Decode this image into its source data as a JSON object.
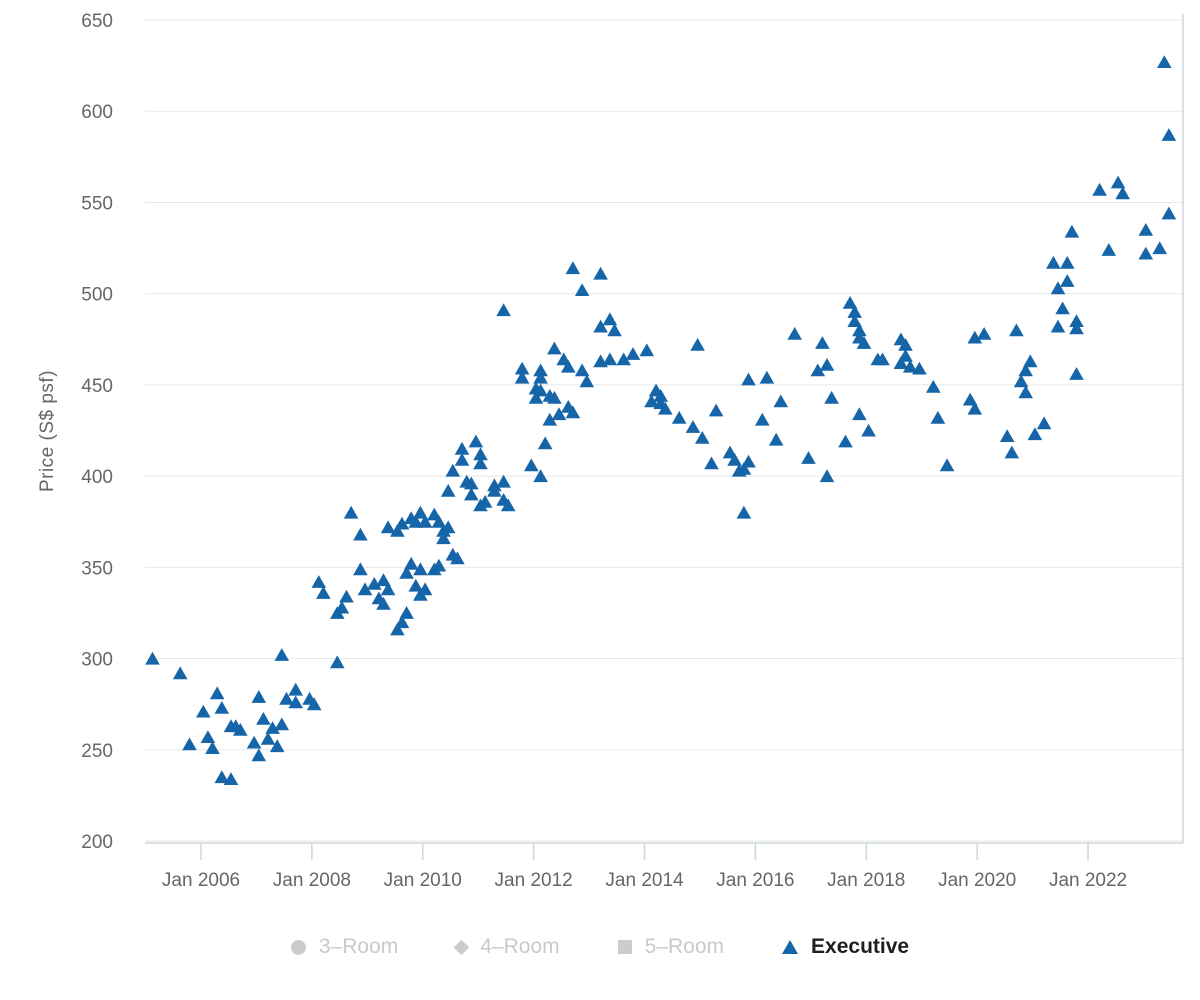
{
  "chart_data": {
    "type": "scatter",
    "title": "",
    "xlabel": "",
    "ylabel": "Price (S$ psf)",
    "ylim": [
      200,
      650
    ],
    "grid": true,
    "legend_position": "bottom",
    "colors": {
      "executive_marker": "#1565a8",
      "disabled_marker": "#cccccc",
      "grid_line": "#e7e7e7",
      "axis_line": "#ccd6dd",
      "tick_text": "#666666",
      "legend_disabled_text": "#c9c9c9",
      "legend_active_text": "#1f1f1f"
    },
    "y_axis": {
      "ticks": [
        200,
        250,
        300,
        350,
        400,
        450,
        500,
        550,
        600,
        650
      ]
    },
    "x_axis": {
      "ticks": [
        {
          "label": "Jan 2006",
          "year": 2006
        },
        {
          "label": "Jan 2008",
          "year": 2008
        },
        {
          "label": "Jan 2010",
          "year": 2010
        },
        {
          "label": "Jan 2012",
          "year": 2012
        },
        {
          "label": "Jan 2014",
          "year": 2014
        },
        {
          "label": "Jan 2016",
          "year": 2016
        },
        {
          "label": "Jan 2018",
          "year": 2018
        },
        {
          "label": "Jan 2020",
          "year": 2020
        },
        {
          "label": "Jan 2022",
          "year": 2022
        }
      ]
    },
    "legend": [
      {
        "label": "3–Room",
        "marker": "circle",
        "active": false
      },
      {
        "label": "4–Room",
        "marker": "diamond",
        "active": false
      },
      {
        "label": "5–Room",
        "marker": "square",
        "active": false
      },
      {
        "label": "Executive",
        "marker": "triangle",
        "active": true
      }
    ],
    "series": [
      {
        "name": "Executive",
        "marker": "triangle",
        "color": "#1565a8",
        "points": [
          [
            "2005-02",
            300
          ],
          [
            "2005-08",
            292
          ],
          [
            "2005-10",
            253
          ],
          [
            "2006-01",
            271
          ],
          [
            "2006-02",
            257
          ],
          [
            "2006-03",
            251
          ],
          [
            "2006-04",
            281
          ],
          [
            "2006-05",
            273
          ],
          [
            "2006-05",
            235
          ],
          [
            "2006-07",
            263
          ],
          [
            "2006-07",
            234
          ],
          [
            "2006-08",
            263
          ],
          [
            "2006-09",
            261
          ],
          [
            "2006-12",
            254
          ],
          [
            "2007-01",
            279
          ],
          [
            "2007-01",
            247
          ],
          [
            "2007-02",
            267
          ],
          [
            "2007-03",
            256
          ],
          [
            "2007-04",
            262
          ],
          [
            "2007-05",
            252
          ],
          [
            "2007-06",
            302
          ],
          [
            "2007-06",
            264
          ],
          [
            "2007-07",
            278
          ],
          [
            "2007-09",
            283
          ],
          [
            "2007-09",
            276
          ],
          [
            "2007-12",
            278
          ],
          [
            "2008-01",
            275
          ],
          [
            "2008-02",
            342
          ],
          [
            "2008-03",
            336
          ],
          [
            "2008-06",
            298
          ],
          [
            "2008-06",
            325
          ],
          [
            "2008-07",
            328
          ],
          [
            "2008-08",
            334
          ],
          [
            "2008-09",
            380
          ],
          [
            "2008-11",
            368
          ],
          [
            "2008-11",
            349
          ],
          [
            "2008-12",
            338
          ],
          [
            "2009-02",
            341
          ],
          [
            "2009-03",
            333
          ],
          [
            "2009-04",
            343
          ],
          [
            "2009-04",
            330
          ],
          [
            "2009-05",
            338
          ],
          [
            "2009-05",
            372
          ],
          [
            "2009-07",
            370
          ],
          [
            "2009-07",
            316
          ],
          [
            "2009-08",
            374
          ],
          [
            "2009-08",
            320
          ],
          [
            "2009-09",
            347
          ],
          [
            "2009-09",
            325
          ],
          [
            "2009-10",
            377
          ],
          [
            "2009-10",
            352
          ],
          [
            "2009-11",
            375
          ],
          [
            "2009-11",
            340
          ],
          [
            "2009-12",
            380
          ],
          [
            "2009-12",
            349
          ],
          [
            "2009-12",
            335
          ],
          [
            "2010-01",
            375
          ],
          [
            "2010-01",
            338
          ],
          [
            "2010-03",
            349
          ],
          [
            "2010-03",
            379
          ],
          [
            "2010-04",
            375
          ],
          [
            "2010-04",
            351
          ],
          [
            "2010-05",
            370
          ],
          [
            "2010-05",
            366
          ],
          [
            "2010-06",
            372
          ],
          [
            "2010-06",
            392
          ],
          [
            "2010-07",
            403
          ],
          [
            "2010-07",
            357
          ],
          [
            "2010-08",
            355
          ],
          [
            "2010-09",
            415
          ],
          [
            "2010-09",
            409
          ],
          [
            "2010-10",
            397
          ],
          [
            "2010-11",
            396
          ],
          [
            "2010-11",
            390
          ],
          [
            "2010-12",
            419
          ],
          [
            "2011-01",
            412
          ],
          [
            "2011-01",
            407
          ],
          [
            "2011-01",
            384
          ],
          [
            "2011-02",
            386
          ],
          [
            "2011-04",
            395
          ],
          [
            "2011-04",
            392
          ],
          [
            "2011-06",
            397
          ],
          [
            "2011-06",
            491
          ],
          [
            "2011-06",
            387
          ],
          [
            "2011-07",
            384
          ],
          [
            "2011-10",
            459
          ],
          [
            "2011-10",
            454
          ],
          [
            "2011-12",
            406
          ],
          [
            "2012-01",
            448
          ],
          [
            "2012-01",
            443
          ],
          [
            "2012-02",
            458
          ],
          [
            "2012-02",
            454
          ],
          [
            "2012-02",
            447
          ],
          [
            "2012-02",
            400
          ],
          [
            "2012-03",
            418
          ],
          [
            "2012-04",
            444
          ],
          [
            "2012-04",
            431
          ],
          [
            "2012-05",
            470
          ],
          [
            "2012-05",
            443
          ],
          [
            "2012-06",
            434
          ],
          [
            "2012-07",
            464
          ],
          [
            "2012-08",
            460
          ],
          [
            "2012-08",
            438
          ],
          [
            "2012-09",
            514
          ],
          [
            "2012-09",
            435
          ],
          [
            "2012-11",
            502
          ],
          [
            "2012-11",
            458
          ],
          [
            "2012-12",
            452
          ],
          [
            "2013-03",
            511
          ],
          [
            "2013-03",
            482
          ],
          [
            "2013-03",
            463
          ],
          [
            "2013-05",
            486
          ],
          [
            "2013-05",
            464
          ],
          [
            "2013-06",
            480
          ],
          [
            "2013-08",
            464
          ],
          [
            "2013-10",
            467
          ],
          [
            "2014-01",
            469
          ],
          [
            "2014-02",
            441
          ],
          [
            "2014-03",
            447
          ],
          [
            "2014-04",
            444
          ],
          [
            "2014-04",
            440
          ],
          [
            "2014-05",
            437
          ],
          [
            "2014-08",
            432
          ],
          [
            "2014-11",
            427
          ],
          [
            "2014-12",
            472
          ],
          [
            "2015-01",
            421
          ],
          [
            "2015-03",
            407
          ],
          [
            "2015-04",
            436
          ],
          [
            "2015-07",
            413
          ],
          [
            "2015-08",
            409
          ],
          [
            "2015-09",
            403
          ],
          [
            "2015-10",
            404
          ],
          [
            "2015-10",
            380
          ],
          [
            "2015-11",
            453
          ],
          [
            "2015-11",
            408
          ],
          [
            "2016-02",
            431
          ],
          [
            "2016-03",
            454
          ],
          [
            "2016-05",
            420
          ],
          [
            "2016-06",
            441
          ],
          [
            "2016-09",
            478
          ],
          [
            "2016-12",
            410
          ],
          [
            "2017-02",
            458
          ],
          [
            "2017-03",
            473
          ],
          [
            "2017-04",
            461
          ],
          [
            "2017-04",
            400
          ],
          [
            "2017-05",
            443
          ],
          [
            "2017-08",
            419
          ],
          [
            "2017-09",
            495
          ],
          [
            "2017-10",
            490
          ],
          [
            "2017-10",
            485
          ],
          [
            "2017-11",
            480
          ],
          [
            "2017-11",
            476
          ],
          [
            "2017-11",
            434
          ],
          [
            "2017-12",
            473
          ],
          [
            "2018-01",
            425
          ],
          [
            "2018-03",
            464
          ],
          [
            "2018-04",
            464
          ],
          [
            "2018-08",
            475
          ],
          [
            "2018-08",
            462
          ],
          [
            "2018-09",
            472
          ],
          [
            "2018-09",
            466
          ],
          [
            "2018-10",
            460
          ],
          [
            "2018-12",
            459
          ],
          [
            "2019-03",
            449
          ],
          [
            "2019-04",
            432
          ],
          [
            "2019-06",
            406
          ],
          [
            "2019-11",
            442
          ],
          [
            "2019-12",
            437
          ],
          [
            "2019-12",
            476
          ],
          [
            "2020-02",
            478
          ],
          [
            "2020-07",
            422
          ],
          [
            "2020-08",
            413
          ],
          [
            "2020-09",
            480
          ],
          [
            "2020-10",
            452
          ],
          [
            "2020-11",
            458
          ],
          [
            "2020-11",
            446
          ],
          [
            "2020-12",
            463
          ],
          [
            "2021-01",
            423
          ],
          [
            "2021-03",
            429
          ],
          [
            "2021-05",
            517
          ],
          [
            "2021-06",
            503
          ],
          [
            "2021-06",
            482
          ],
          [
            "2021-07",
            492
          ],
          [
            "2021-08",
            517
          ],
          [
            "2021-08",
            507
          ],
          [
            "2021-09",
            534
          ],
          [
            "2021-10",
            485
          ],
          [
            "2021-10",
            481
          ],
          [
            "2021-10",
            456
          ],
          [
            "2022-03",
            557
          ],
          [
            "2022-05",
            524
          ],
          [
            "2022-07",
            561
          ],
          [
            "2022-08",
            555
          ],
          [
            "2023-01",
            535
          ],
          [
            "2023-01",
            522
          ],
          [
            "2023-04",
            525
          ],
          [
            "2023-05",
            627
          ],
          [
            "2023-06",
            587
          ],
          [
            "2023-06",
            544
          ]
        ]
      }
    ]
  }
}
